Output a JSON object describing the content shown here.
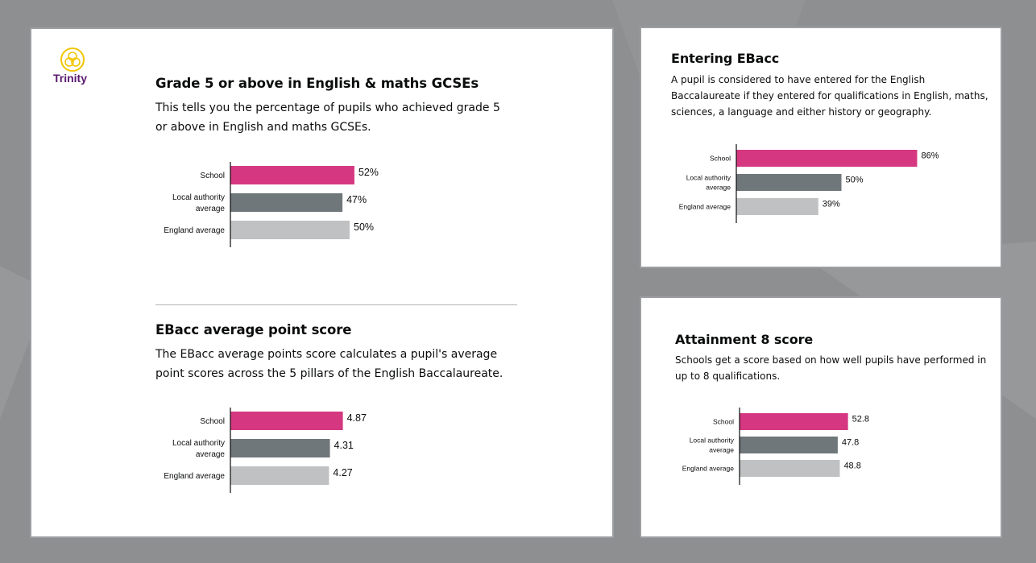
{
  "brand": {
    "name": "Trinity",
    "logo_color": "#f2c500",
    "text_color": "#5a1a6e"
  },
  "colors": {
    "school": "#d53880",
    "local_authority": "#6f777b",
    "england": "#bfc1c3",
    "background": "#8e8f91"
  },
  "sections": {
    "grade5": {
      "title": "Grade 5 or above in English & maths GCSEs",
      "description": "This tells you the percentage of pupils who achieved grade 5 or above in English and maths GCSEs."
    },
    "ebacc_score": {
      "title": "EBacc average point score",
      "description": "The EBacc average points score calculates a pupil's average point scores across the 5 pillars of the English Baccalaureate."
    },
    "entering_ebacc": {
      "title": "Entering EBacc",
      "description": "A pupil is considered to have entered for the English Baccalaureate if they entered for qualifications in English, maths, sciences, a language and either history or geography."
    },
    "attainment8": {
      "title": "Attainment 8 score",
      "description": "Schools get a score based on how well pupils have performed in up to 8 qualifications."
    }
  },
  "chart_data": [
    {
      "id": "grade5",
      "type": "bar",
      "orientation": "horizontal",
      "categories": [
        [
          "School"
        ],
        [
          "Local authority",
          "average"
        ],
        [
          "England average"
        ]
      ],
      "values": [
        52,
        47,
        50
      ],
      "value_labels": [
        "52%",
        "47%",
        "50%"
      ],
      "xlim": [
        0,
        100
      ]
    },
    {
      "id": "ebacc_score",
      "type": "bar",
      "orientation": "horizontal",
      "categories": [
        [
          "School"
        ],
        [
          "Local authority",
          "average"
        ],
        [
          "England average"
        ]
      ],
      "values": [
        4.87,
        4.31,
        4.27
      ],
      "value_labels": [
        "4.87",
        "4.31",
        "4.27"
      ],
      "xlim": [
        0,
        9
      ]
    },
    {
      "id": "entering_ebacc",
      "type": "bar",
      "orientation": "horizontal",
      "categories": [
        [
          "School"
        ],
        [
          "Local authority",
          "average"
        ],
        [
          "England average"
        ]
      ],
      "values": [
        86,
        50,
        39
      ],
      "value_labels": [
        "86%",
        "50%",
        "39%"
      ],
      "xlim": [
        0,
        100
      ]
    },
    {
      "id": "attainment8",
      "type": "bar",
      "orientation": "horizontal",
      "categories": [
        [
          "School"
        ],
        [
          "Local authority",
          "average"
        ],
        [
          "England average"
        ]
      ],
      "values": [
        52.8,
        47.8,
        48.8
      ],
      "value_labels": [
        "52.8",
        "47.8",
        "48.8"
      ],
      "xlim": [
        0,
        100
      ]
    }
  ]
}
